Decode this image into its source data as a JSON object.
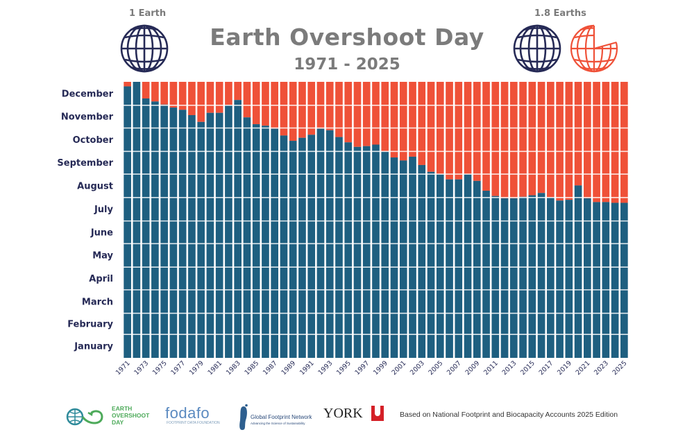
{
  "header": {
    "title": "Earth Overshoot Day",
    "subtitle": "1971 - 2025",
    "left_caption": "1 Earth",
    "right_caption": "1.8 Earths"
  },
  "colors": {
    "overshoot_bar": "#1e5f80",
    "deficit_bar": "#ef5138",
    "globe_navy": "#262a56",
    "globe_orange": "#ef5138",
    "title_gray": "#7b7b7b"
  },
  "chart_data": {
    "type": "bar",
    "stacked": true,
    "title": "Earth Overshoot Day",
    "subtitle": "1971 - 2025",
    "y_axis_labels": [
      "January",
      "February",
      "March",
      "April",
      "May",
      "June",
      "July",
      "August",
      "September",
      "October",
      "November",
      "December"
    ],
    "x_tick_labels": [
      "1971",
      "1973",
      "1975",
      "1977",
      "1979",
      "1981",
      "1983",
      "1985",
      "1987",
      "1989",
      "1991",
      "1993",
      "1995",
      "1997",
      "1999",
      "2001",
      "2003",
      "2005",
      "2007",
      "2009",
      "2011",
      "2013",
      "2015",
      "2017",
      "2019",
      "2021",
      "2023",
      "2025"
    ],
    "ylim": [
      "01-01",
      "12-31"
    ],
    "grid": "horizontal month lines",
    "x": [
      1971,
      1972,
      1973,
      1974,
      1975,
      1976,
      1977,
      1978,
      1979,
      1980,
      1981,
      1982,
      1983,
      1984,
      1985,
      1986,
      1987,
      1988,
      1989,
      1990,
      1991,
      1992,
      1993,
      1994,
      1995,
      1996,
      1997,
      1998,
      1999,
      2000,
      2001,
      2002,
      2003,
      2004,
      2005,
      2006,
      2007,
      2008,
      2009,
      2010,
      2011,
      2012,
      2013,
      2014,
      2015,
      2016,
      2017,
      2018,
      2019,
      2020,
      2021,
      2022,
      2023,
      2024,
      2025
    ],
    "overshoot_dates": [
      "12-25",
      "12-31",
      "12-09",
      "12-05",
      "12-01",
      "11-27",
      "11-24",
      "11-17",
      "11-08",
      "11-20",
      "11-20",
      "11-30",
      "12-07",
      "11-14",
      "11-05",
      "11-03",
      "10-30",
      "10-21",
      "10-14",
      "10-18",
      "10-22",
      "10-30",
      "10-28",
      "10-19",
      "10-12",
      "10-06",
      "10-07",
      "10-09",
      "09-30",
      "09-22",
      "09-18",
      "09-23",
      "09-12",
      "09-03",
      "08-31",
      "08-24",
      "08-24",
      "08-31",
      "08-22",
      "08-09",
      "08-02",
      "07-30",
      "07-30",
      "08-01",
      "08-03",
      "08-06",
      "07-31",
      "07-27",
      "07-28",
      "08-16",
      "07-30",
      "07-25",
      "07-25",
      "07-24",
      "07-24"
    ]
  },
  "footer": {
    "logos": {
      "earth_overshoot_day": [
        "EARTH",
        "OVERSHOOT",
        "DAY"
      ],
      "fodafo": "fodafo",
      "fodafo_sub": "FOOTPRINT DATA FOUNDATION",
      "gfn": "Global Footprint Network",
      "gfn_sub": "Advancing the Science of Sustainability",
      "york": "YORK"
    },
    "note": "Based on National Footprint and Biocapacity Accounts 2025 Edition"
  }
}
